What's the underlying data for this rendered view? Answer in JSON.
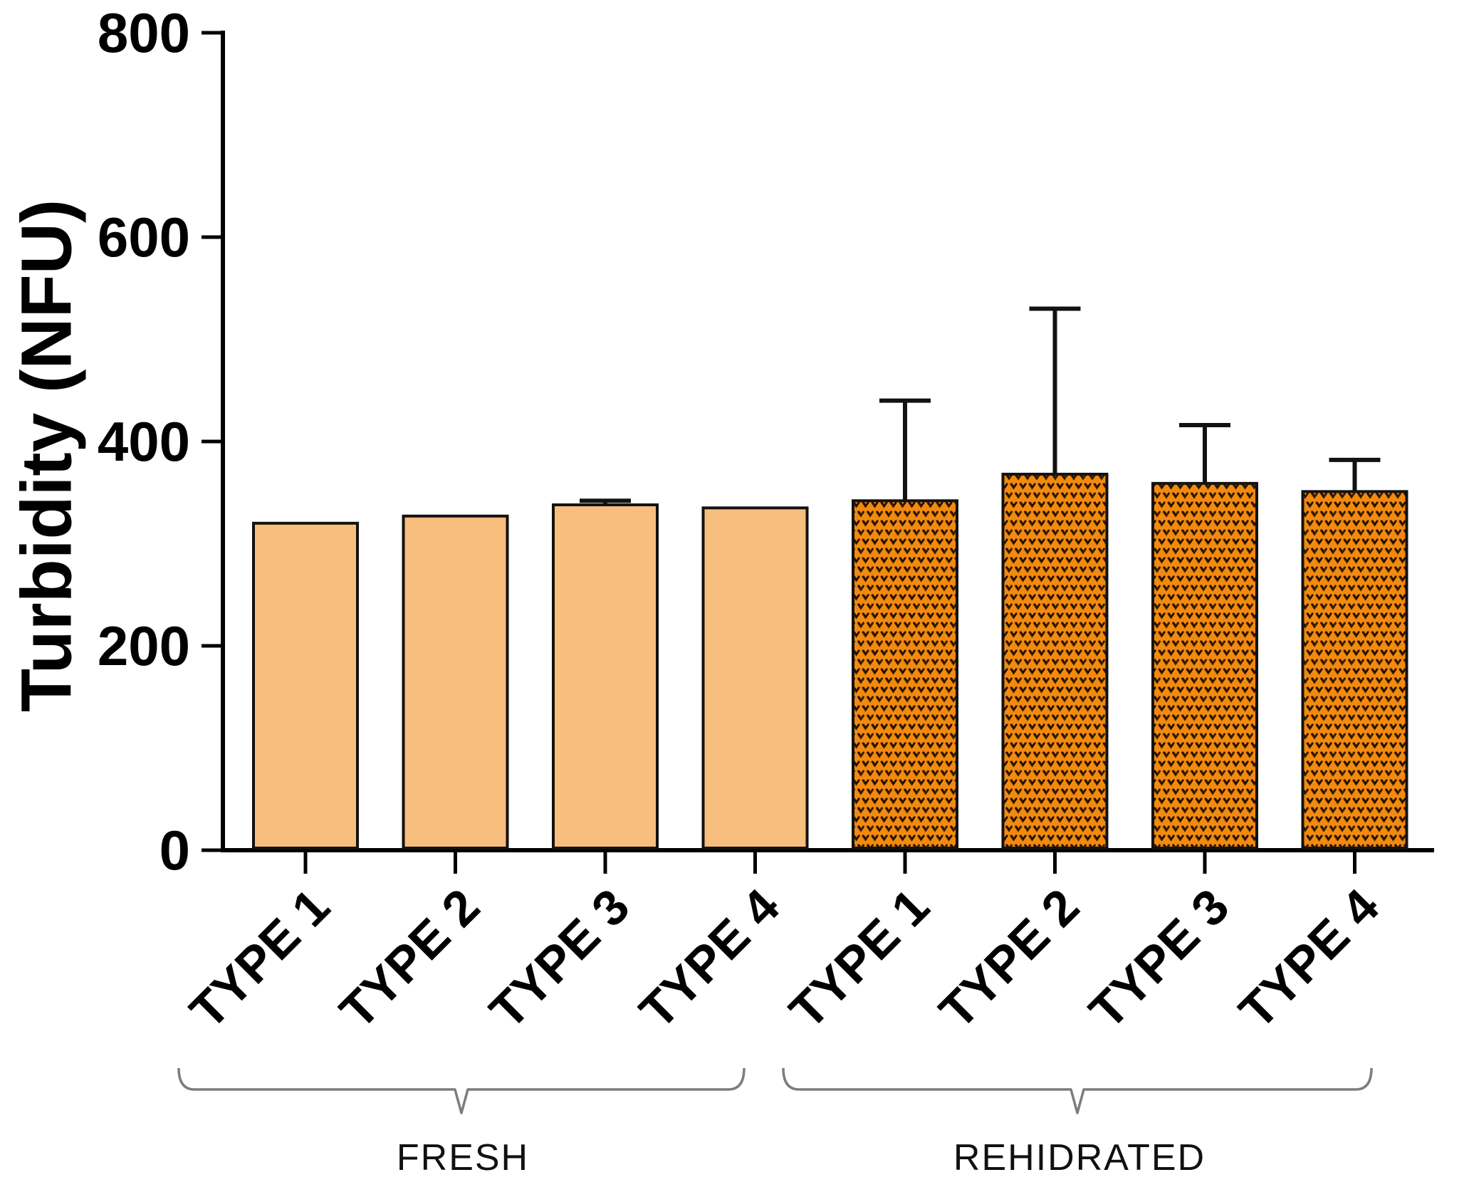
{
  "figure": {
    "background": "#ffffff"
  },
  "chart_data": {
    "type": "bar",
    "title": "",
    "ylabel": "Turbidity (NFU)",
    "xlabel": "",
    "ylim": [
      0,
      800
    ],
    "yticks": [
      0,
      200,
      400,
      600,
      800
    ],
    "grid": false,
    "legend": "none",
    "categories": [
      "TYPE 1",
      "TYPE 2",
      "TYPE 3",
      "TYPE 4",
      "TYPE 1",
      "TYPE 2",
      "TYPE 3",
      "TYPE 4"
    ],
    "groups": [
      {
        "label": "FRESH",
        "category_indices": [
          0,
          1,
          2,
          3
        ],
        "style": "solid",
        "fill": "#F8BE7D"
      },
      {
        "label": "REHIDRATED",
        "category_indices": [
          4,
          5,
          6,
          7
        ],
        "style": "patterned",
        "fill": "#F18A0E",
        "pattern_color": "#3A1B02",
        "pattern_color_dark": "#1F0D00"
      }
    ],
    "series": [
      {
        "name": "Turbidity",
        "values": [
          320,
          327,
          338,
          335,
          342,
          368,
          359,
          351
        ],
        "errors_plus": [
          0,
          0,
          4,
          0,
          98,
          162,
          57,
          31
        ]
      }
    ],
    "colors": {
      "bar_edge": "#141210",
      "error_bar": "#141210",
      "axis": "#000000",
      "tick_text": "#000000",
      "bracket": "#7d7d7d"
    }
  }
}
